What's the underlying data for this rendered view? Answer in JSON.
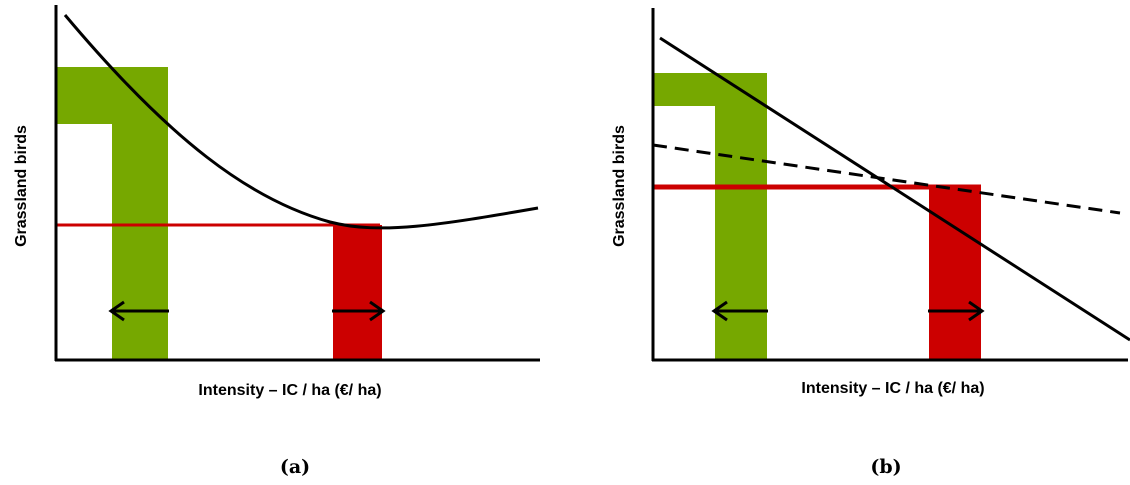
{
  "colors": {
    "green": "#76a800",
    "red": "#cc0000",
    "line": "#000000"
  },
  "panel_a": {
    "caption": "(a)",
    "ylabel": "Grassland birds",
    "xlabel": "Intensity – IC / ha (€/ ha)"
  },
  "panel_b": {
    "caption": "(b)",
    "ylabel": "Grassland birds",
    "xlabel": "Intensity – IC / ha (€/ ha)"
  }
}
